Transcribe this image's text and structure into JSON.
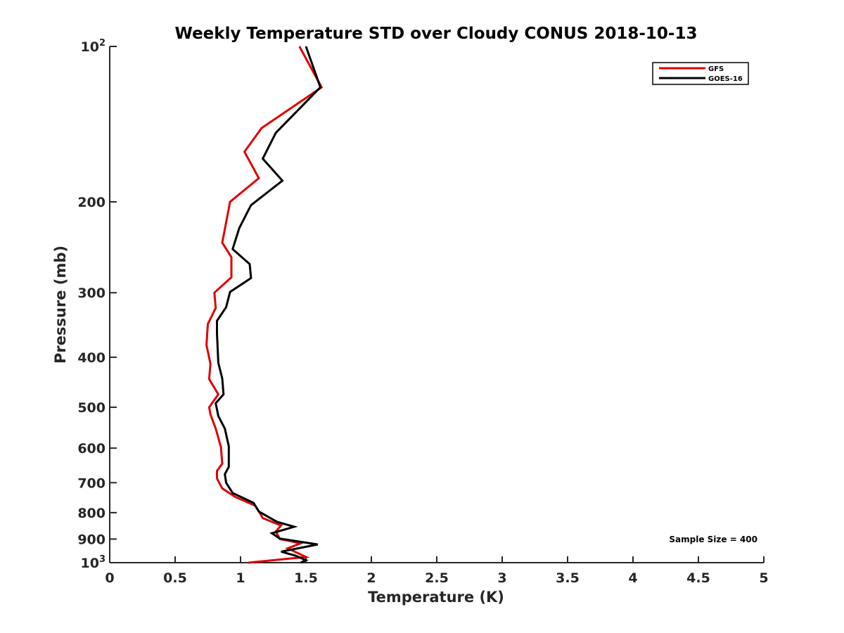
{
  "chart_data": {
    "type": "line",
    "title": "Weekly Temperature STD over Cloudy CONUS 2018-10-13",
    "xlabel": "Temperature (K)",
    "ylabel": "Pressure (mb)",
    "xlim": [
      0,
      5
    ],
    "ylim": [
      100,
      1000
    ],
    "y_scale": "log",
    "y_reversed": true,
    "grid": false,
    "legend_position": "top-right",
    "x_ticks": [
      "0",
      "0.5",
      "1",
      "1.5",
      "2",
      "2.5",
      "3",
      "3.5",
      "4",
      "4.5",
      "5"
    ],
    "y_ticks": [
      {
        "value": 100,
        "base": "10",
        "exp": "2"
      },
      {
        "value": 200,
        "label": "200"
      },
      {
        "value": 300,
        "label": "300"
      },
      {
        "value": 400,
        "label": "400"
      },
      {
        "value": 500,
        "label": "500"
      },
      {
        "value": 600,
        "label": "600"
      },
      {
        "value": 700,
        "label": "700"
      },
      {
        "value": 800,
        "label": "800"
      },
      {
        "value": 900,
        "label": "900"
      },
      {
        "value": 1000,
        "base": "10",
        "exp": "3"
      }
    ],
    "annotation": "Sample Size = 400",
    "series": [
      {
        "name": "GFS",
        "color": "#e00000",
        "points": [
          [
            1.45,
            100
          ],
          [
            1.62,
            120
          ],
          [
            1.16,
            144
          ],
          [
            1.03,
            160
          ],
          [
            1.14,
            180
          ],
          [
            0.92,
            200
          ],
          [
            0.86,
            240
          ],
          [
            0.93,
            256
          ],
          [
            0.93,
            280
          ],
          [
            0.8,
            300
          ],
          [
            0.81,
            321
          ],
          [
            0.75,
            345
          ],
          [
            0.74,
            379
          ],
          [
            0.77,
            412
          ],
          [
            0.76,
            441
          ],
          [
            0.83,
            472
          ],
          [
            0.76,
            500
          ],
          [
            0.77,
            516
          ],
          [
            0.81,
            550
          ],
          [
            0.85,
            597
          ],
          [
            0.86,
            643
          ],
          [
            0.82,
            664
          ],
          [
            0.82,
            687
          ],
          [
            0.86,
            718
          ],
          [
            0.96,
            746
          ],
          [
            1.11,
            775
          ],
          [
            1.14,
            795
          ],
          [
            1.17,
            820
          ],
          [
            1.31,
            847
          ],
          [
            1.27,
            870
          ],
          [
            1.3,
            900
          ],
          [
            1.46,
            917
          ],
          [
            1.36,
            938
          ],
          [
            1.5,
            975
          ],
          [
            1.06,
            1000
          ]
        ]
      },
      {
        "name": "GOES-16",
        "color": "#000000",
        "points": [
          [
            1.5,
            100
          ],
          [
            1.61,
            120
          ],
          [
            1.27,
            147
          ],
          [
            1.17,
            165
          ],
          [
            1.32,
            182
          ],
          [
            1.08,
            203
          ],
          [
            0.99,
            225
          ],
          [
            0.94,
            247
          ],
          [
            1.07,
            264
          ],
          [
            1.08,
            281
          ],
          [
            0.92,
            299
          ],
          [
            0.89,
            320
          ],
          [
            0.82,
            340
          ],
          [
            0.82,
            360
          ],
          [
            0.83,
            410
          ],
          [
            0.86,
            440
          ],
          [
            0.87,
            472
          ],
          [
            0.81,
            491
          ],
          [
            0.83,
            520
          ],
          [
            0.88,
            550
          ],
          [
            0.91,
            595
          ],
          [
            0.91,
            617
          ],
          [
            0.91,
            652
          ],
          [
            0.88,
            674
          ],
          [
            0.89,
            700
          ],
          [
            0.94,
            733
          ],
          [
            1.1,
            766
          ],
          [
            1.14,
            796
          ],
          [
            1.28,
            834
          ],
          [
            1.41,
            852
          ],
          [
            1.24,
            877
          ],
          [
            1.3,
            898
          ],
          [
            1.59,
            922
          ],
          [
            1.31,
            952
          ],
          [
            1.42,
            969
          ],
          [
            1.5,
            989
          ],
          [
            1.46,
            1000
          ]
        ]
      }
    ]
  }
}
